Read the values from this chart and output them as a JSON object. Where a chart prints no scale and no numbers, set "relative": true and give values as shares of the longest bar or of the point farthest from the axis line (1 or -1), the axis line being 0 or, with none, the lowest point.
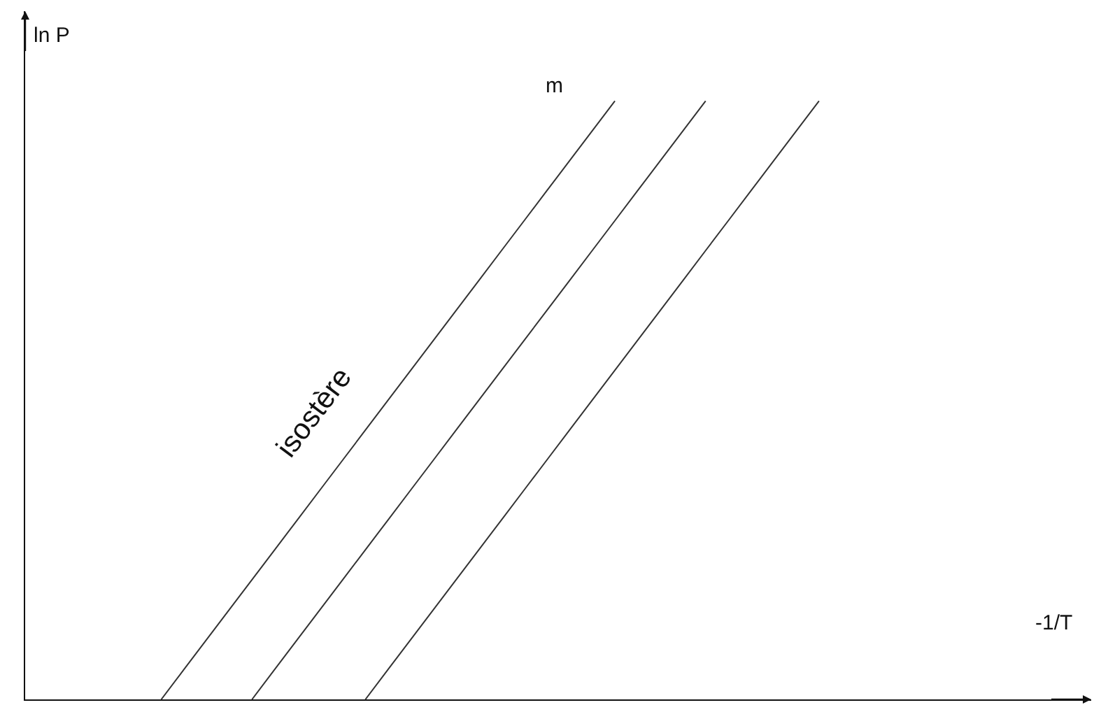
{
  "chart_data": {
    "type": "line",
    "relative": true,
    "xlabel": "-1/T",
    "ylabel": "ln P",
    "annotations": [
      "isostère",
      "m"
    ],
    "marker": "none",
    "line_style": "solid",
    "categories": [
      null,
      null,
      null,
      null,
      null,
      null,
      null,
      null,
      null,
      null,
      null,
      null,
      null,
      null,
      null,
      null,
      null,
      null,
      null,
      null,
      null,
      null,
      null,
      null,
      null,
      null,
      null,
      null,
      null,
      null,
      null,
      null,
      null,
      null,
      null,
      null,
      null,
      null,
      null,
      null,
      null,
      null,
      null,
      null,
      null,
      null,
      null,
      null
    ],
    "series": [
      {
        "color": "#333333",
        "values": [
          null,
          null,
          null,
          null,
          null,
          null,
          0,
          0.05,
          0.1,
          0.15,
          0.2,
          0.25,
          0.3,
          0.35,
          0.4,
          0.45,
          0.5,
          0.55,
          0.6,
          0.65,
          0.7,
          0.75,
          0.8,
          0.85,
          0.9,
          0.95,
          1,
          null,
          null,
          null,
          null,
          null,
          null,
          null,
          null,
          null,
          null,
          null,
          null,
          null,
          null,
          null,
          null,
          null,
          null,
          null,
          null,
          null
        ]
      },
      {
        "color": "#333333",
        "values": [
          null,
          null,
          null,
          null,
          null,
          null,
          null,
          null,
          null,
          null,
          0,
          0.05,
          0.1,
          0.15,
          0.2,
          0.25,
          0.3,
          0.35,
          0.4,
          0.45,
          0.5,
          0.55,
          0.6,
          0.65,
          0.7,
          0.75,
          0.8,
          0.85,
          0.9,
          0.95,
          1,
          null,
          null,
          null,
          null,
          null,
          null,
          null,
          null,
          null,
          null,
          null,
          null,
          null,
          null,
          null,
          null,
          null
        ]
      },
      {
        "color": "#333333",
        "values": [
          null,
          null,
          null,
          null,
          null,
          null,
          null,
          null,
          null,
          null,
          null,
          null,
          null,
          null,
          null,
          0,
          0.05,
          0.1,
          0.15,
          0.2,
          0.25,
          0.3,
          0.35,
          0.4,
          0.45,
          0.5,
          0.55,
          0.6,
          0.65,
          0.7,
          0.75,
          0.8,
          0.85,
          0.9,
          0.95,
          1,
          null,
          null,
          null,
          null,
          null,
          null,
          null,
          null,
          null,
          null,
          null,
          null
        ]
      }
    ]
  }
}
